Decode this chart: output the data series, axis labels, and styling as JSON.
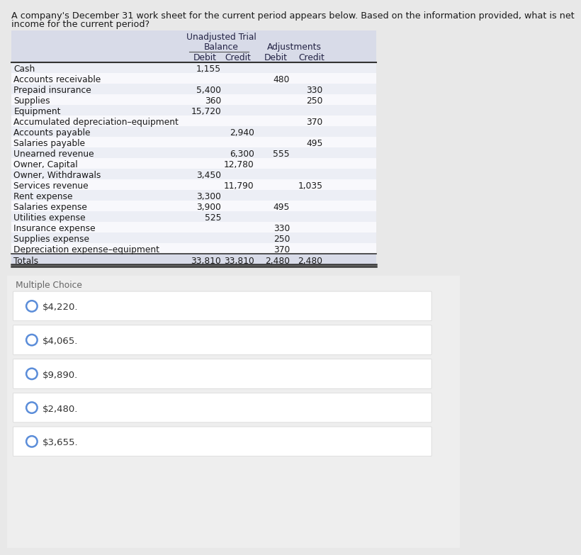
{
  "question_line1": "A company's December 31 work sheet for the current period appears below. Based on the information provided, what is net",
  "question_line2": "income for the current period?",
  "header_row1_utb": "Unadjusted Trial",
  "header_row2_utb": "Balance",
  "header_row2_adj": "Adjustments",
  "header_cols": [
    "Debit",
    "Credit",
    "Debit",
    "Credit"
  ],
  "rows": [
    {
      "label": "Cash",
      "utb_d": "1,155",
      "utb_c": "",
      "adj_d": "",
      "adj_c": ""
    },
    {
      "label": "Accounts receivable",
      "utb_d": "",
      "utb_c": "",
      "adj_d": "480",
      "adj_c": ""
    },
    {
      "label": "Prepaid insurance",
      "utb_d": "5,400",
      "utb_c": "",
      "adj_d": "",
      "adj_c": "330"
    },
    {
      "label": "Supplies",
      "utb_d": "360",
      "utb_c": "",
      "adj_d": "",
      "adj_c": "250"
    },
    {
      "label": "Equipment",
      "utb_d": "15,720",
      "utb_c": "",
      "adj_d": "",
      "adj_c": ""
    },
    {
      "label": "Accumulated depreciation–equipment",
      "utb_d": "",
      "utb_c": "",
      "adj_d": "",
      "adj_c": "370"
    },
    {
      "label": "Accounts payable",
      "utb_d": "",
      "utb_c": "2,940",
      "adj_d": "",
      "adj_c": ""
    },
    {
      "label": "Salaries payable",
      "utb_d": "",
      "utb_c": "",
      "adj_d": "",
      "adj_c": "495"
    },
    {
      "label": "Unearned revenue",
      "utb_d": "",
      "utb_c": "6,300",
      "adj_d": "555",
      "adj_c": ""
    },
    {
      "label": "Owner, Capital",
      "utb_d": "",
      "utb_c": "12,780",
      "adj_d": "",
      "adj_c": ""
    },
    {
      "label": "Owner, Withdrawals",
      "utb_d": "3,450",
      "utb_c": "",
      "adj_d": "",
      "adj_c": ""
    },
    {
      "label": "Services revenue",
      "utb_d": "",
      "utb_c": "11,790",
      "adj_d": "",
      "adj_c": "1,035"
    },
    {
      "label": "Rent expense",
      "utb_d": "3,300",
      "utb_c": "",
      "adj_d": "",
      "adj_c": ""
    },
    {
      "label": "Salaries expense",
      "utb_d": "3,900",
      "utb_c": "",
      "adj_d": "495",
      "adj_c": ""
    },
    {
      "label": "Utilities expense",
      "utb_d": "525",
      "utb_c": "",
      "adj_d": "",
      "adj_c": ""
    },
    {
      "label": "Insurance expense",
      "utb_d": "",
      "utb_c": "",
      "adj_d": "330",
      "adj_c": ""
    },
    {
      "label": "Supplies expense",
      "utb_d": "",
      "utb_c": "",
      "adj_d": "250",
      "adj_c": ""
    },
    {
      "label": "Depreciation expense–equipment",
      "utb_d": "",
      "utb_c": "",
      "adj_d": "370",
      "adj_c": ""
    },
    {
      "label": "Totals",
      "utb_d": "33,810",
      "utb_c": "33,810",
      "adj_d": "2,480",
      "adj_c": "2,480"
    }
  ],
  "multiple_choice_label": "Multiple Choice",
  "choices": [
    "$4,220.",
    "$4,065.",
    "$9,890.",
    "$2,480.",
    "$3,655."
  ],
  "page_bg": "#e8e8e8",
  "table_area_bg": "#ffffff",
  "table_header_bg": "#d8dbe8",
  "table_row_even_bg": "#eceef5",
  "table_row_odd_bg": "#f8f8fc",
  "mc_section_bg": "#eeeeee",
  "choice_box_bg": "#ffffff",
  "circle_color": "#5b8dd9",
  "text_color": "#1a1a1a",
  "header_text_color": "#222244"
}
